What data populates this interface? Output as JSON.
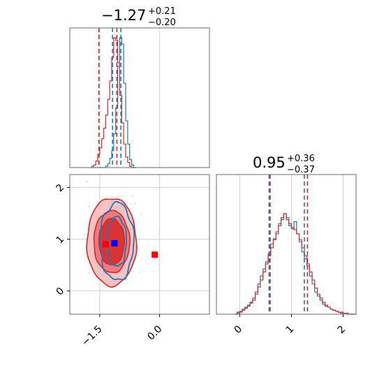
{
  "colors": {
    "blue": "#1f77b4",
    "red": "#d62728",
    "marker_red": "#ff0000",
    "marker_blue": "#0000ff"
  },
  "chart_data": [
    {
      "type": "histogram",
      "panel": "top-left",
      "title_main": "−1.27",
      "title_sup": "+0.21",
      "title_sub": "−0.20",
      "xlim": [
        -2.25,
        1.25
      ],
      "grid": true,
      "bins": [
        -1.7,
        -1.65,
        -1.6,
        -1.55,
        -1.5,
        -1.45,
        -1.4,
        -1.35,
        -1.3,
        -1.25,
        -1.2,
        -1.15,
        -1.1,
        -1.05,
        -1.0,
        -0.95,
        -0.9,
        -0.85,
        -0.8,
        -0.75,
        -0.7,
        -0.65,
        -0.6
      ],
      "series": [
        {
          "color": "blue",
          "counts": [
            0,
            0,
            0,
            0,
            0,
            0,
            0,
            1,
            3,
            7,
            13,
            26,
            46,
            78,
            100,
            95,
            65,
            36,
            18,
            6,
            2,
            0
          ]
        },
        {
          "color": "red",
          "counts": [
            1,
            2,
            5,
            10,
            15,
            22,
            30,
            40,
            52,
            66,
            84,
            99,
            97,
            80,
            55,
            34,
            18,
            8,
            4,
            1,
            0,
            0
          ]
        }
      ],
      "vlines": [
        {
          "color": "red",
          "x": -1.52
        },
        {
          "color": "red",
          "x": -1.07
        },
        {
          "color": "blue",
          "x": -1.18
        },
        {
          "color": "blue",
          "x": -0.97
        }
      ]
    },
    {
      "type": "contour",
      "panel": "bottom-left",
      "xlim": [
        -2.25,
        1.25
      ],
      "ylim": [
        -0.45,
        2.25
      ],
      "xticks": [
        -1.5,
        0.0
      ],
      "xtick_labels": [
        "−1.5",
        "0.0"
      ],
      "yticks": [
        0,
        1,
        2
      ],
      "ytick_labels": [
        "0",
        "1",
        "2"
      ],
      "grid": true,
      "red_levels": [
        {
          "cx": -1.2,
          "cy": 0.95,
          "rx": 0.62,
          "ry": 0.85
        },
        {
          "cx": -1.2,
          "cy": 0.95,
          "rx": 0.45,
          "ry": 0.6
        },
        {
          "cx": -1.2,
          "cy": 0.95,
          "rx": 0.32,
          "ry": 0.45
        }
      ],
      "blue_levels": [
        {
          "cx": -1.07,
          "cy": 0.95,
          "rx": 0.42,
          "ry": 0.75
        },
        {
          "cx": -1.07,
          "cy": 0.95,
          "rx": 0.24,
          "ry": 0.48
        }
      ],
      "markers": [
        {
          "color": "marker_red",
          "x": -1.35,
          "y": 0.9
        },
        {
          "color": "marker_blue",
          "x": -1.13,
          "y": 0.92
        },
        {
          "color": "marker_red",
          "x": -0.12,
          "y": 0.7
        }
      ]
    },
    {
      "type": "histogram",
      "panel": "bottom-right",
      "title_main": "0.95",
      "title_sup": "+0.36",
      "title_sub": "−0.37",
      "xlim": [
        -0.45,
        2.25
      ],
      "xticks": [
        0,
        1,
        2
      ],
      "xtick_labels": [
        "0",
        "1",
        "2"
      ],
      "grid": true,
      "bins": [
        -0.1,
        -0.05,
        0.0,
        0.05,
        0.1,
        0.15,
        0.2,
        0.25,
        0.3,
        0.35,
        0.4,
        0.45,
        0.5,
        0.55,
        0.6,
        0.65,
        0.7,
        0.75,
        0.8,
        0.85,
        0.9,
        0.95,
        1.0,
        1.05,
        1.1,
        1.15,
        1.2,
        1.25,
        1.3,
        1.35,
        1.4,
        1.45,
        1.5,
        1.55,
        1.6,
        1.65,
        1.7,
        1.75,
        1.8,
        1.85,
        1.9,
        1.95,
        2.0,
        2.05,
        2.1,
        2.15,
        2.2,
        2.25
      ],
      "series": [
        {
          "color": "blue",
          "counts": [
            0,
            2,
            3,
            5,
            7,
            9,
            12,
            16,
            22,
            30,
            38,
            45,
            52,
            60,
            70,
            75,
            80,
            90,
            94,
            100,
            96,
            88,
            85,
            92,
            80,
            72,
            62,
            55,
            48,
            38,
            30,
            22,
            18,
            14,
            10,
            8,
            7,
            5,
            4,
            3,
            2,
            2,
            1,
            1,
            0,
            0,
            0
          ]
        },
        {
          "color": "red",
          "counts": [
            0,
            1,
            2,
            4,
            6,
            8,
            11,
            14,
            20,
            27,
            34,
            42,
            50,
            58,
            66,
            74,
            82,
            88,
            96,
            100,
            94,
            90,
            86,
            84,
            80,
            74,
            66,
            58,
            50,
            42,
            34,
            26,
            20,
            16,
            12,
            9,
            7,
            5,
            4,
            3,
            2,
            1,
            1,
            1,
            0,
            0,
            0
          ]
        }
      ],
      "vlines": [
        {
          "color": "red",
          "x": 0.57
        },
        {
          "color": "red",
          "x": 1.31
        },
        {
          "color": "blue",
          "x": 0.59
        },
        {
          "color": "blue",
          "x": 1.25
        }
      ]
    }
  ]
}
